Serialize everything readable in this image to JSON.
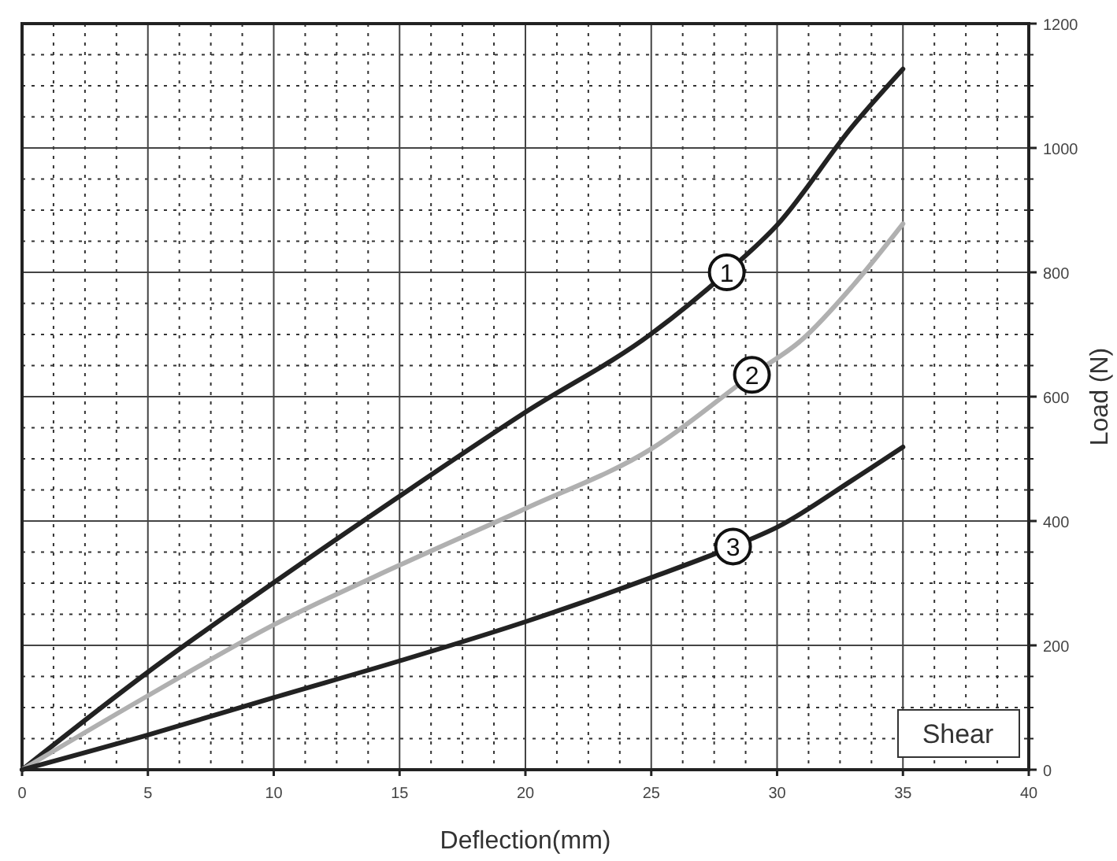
{
  "chart_data": {
    "type": "line",
    "xlabel": "Deflection(mm)",
    "ylabel": "Load (N)",
    "xlim": [
      0,
      40
    ],
    "ylim": [
      0,
      1200
    ],
    "xticks": [
      0,
      5,
      10,
      15,
      20,
      25,
      30,
      35,
      40
    ],
    "yticks": [
      0,
      200,
      400,
      600,
      800,
      1000,
      1200
    ],
    "grid": true,
    "marker": "none",
    "line_style": "solid",
    "annotations": [
      "Shear"
    ],
    "series": [
      {
        "name": "1",
        "color": "#222222",
        "x": [
          0,
          5,
          10,
          15,
          20,
          25,
          28,
          30,
          33,
          35
        ],
        "values": [
          0,
          157,
          301,
          440,
          575,
          701,
          800,
          876,
          1035,
          1127
        ]
      },
      {
        "name": "2",
        "color": "#b0b0b0",
        "x": [
          0,
          5,
          10,
          15,
          20,
          25,
          29,
          31,
          33,
          35
        ],
        "values": [
          0,
          119,
          233,
          329,
          420,
          516,
          635,
          692,
          778,
          878
        ]
      },
      {
        "name": "3",
        "color": "#222222",
        "x": [
          0,
          5,
          10,
          15,
          20,
          25,
          28.25,
          30,
          33,
          35
        ],
        "values": [
          0,
          56,
          116,
          175,
          238,
          309,
          359,
          390,
          466,
          519
        ]
      }
    ]
  }
}
